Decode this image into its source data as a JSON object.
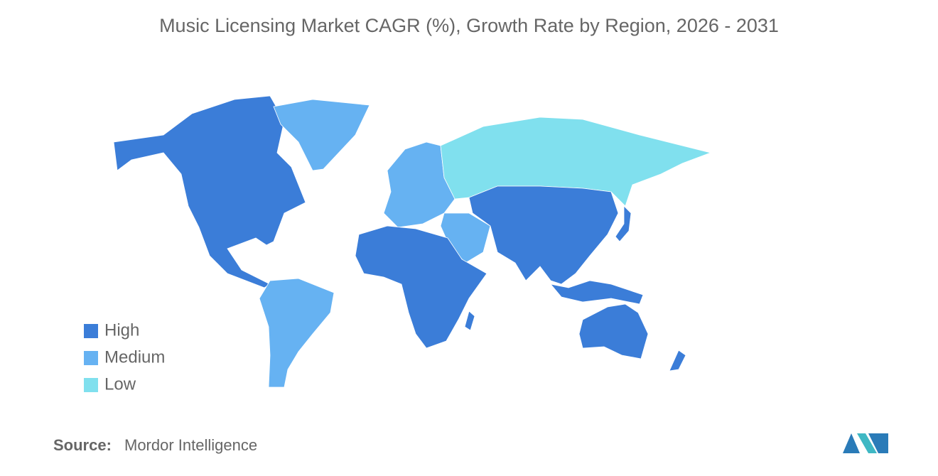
{
  "title": "Music Licensing Market CAGR (%), Growth Rate by Region, 2026 - 2031",
  "legend": [
    {
      "label": "High",
      "color": "#3b7dd8"
    },
    {
      "label": "Medium",
      "color": "#66b2f2"
    },
    {
      "label": "Low",
      "color": "#80e0ee"
    }
  ],
  "source": {
    "label": "Source:",
    "text": "Mordor Intelligence"
  }
}
